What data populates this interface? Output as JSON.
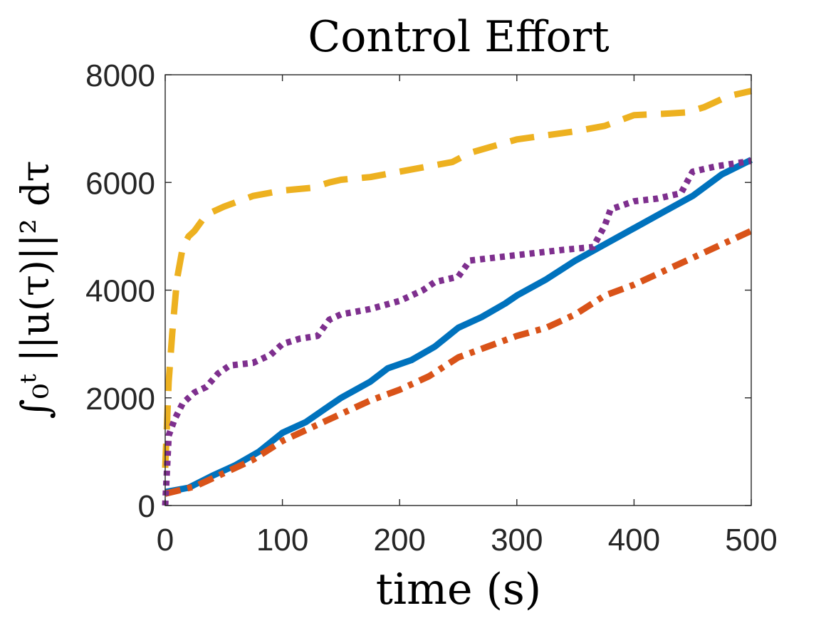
{
  "chart_data": {
    "type": "line",
    "title": "Control Effort",
    "xlabel": "time (s)",
    "ylabel": "∫₀ᵗ ||u(τ)||² dτ",
    "xlim": [
      0,
      500
    ],
    "ylim": [
      0,
      8000
    ],
    "xticks": [
      0,
      100,
      200,
      300,
      400,
      500
    ],
    "yticks": [
      0,
      2000,
      4000,
      6000,
      8000
    ],
    "xtick_labels": [
      "0",
      "100",
      "200",
      "300",
      "400",
      "500"
    ],
    "ytick_labels": [
      "0",
      "2000",
      "4000",
      "6000",
      "8000"
    ],
    "grid": false,
    "series": [
      {
        "color": "#EDB120",
        "style": "dashed",
        "x": [
          0,
          3,
          6,
          10,
          15,
          20,
          25,
          35,
          50,
          75,
          100,
          125,
          140,
          150,
          175,
          200,
          225,
          245,
          260,
          300,
          350,
          375,
          400,
          430,
          445,
          460,
          480,
          500
        ],
        "y": [
          700,
          2300,
          3200,
          4200,
          4800,
          5000,
          5100,
          5400,
          5550,
          5750,
          5850,
          5900,
          6000,
          6050,
          6100,
          6200,
          6300,
          6380,
          6550,
          6800,
          6950,
          7050,
          7250,
          7280,
          7300,
          7400,
          7600,
          7700
        ]
      },
      {
        "color": "#0072BD",
        "style": "solid",
        "x": [
          0,
          20,
          40,
          60,
          80,
          100,
          120,
          140,
          150,
          175,
          190,
          210,
          230,
          250,
          270,
          290,
          300,
          325,
          350,
          375,
          400,
          425,
          450,
          475,
          500
        ],
        "y": [
          250,
          330,
          550,
          750,
          1000,
          1350,
          1550,
          1850,
          2000,
          2300,
          2550,
          2700,
          2950,
          3300,
          3500,
          3750,
          3900,
          4200,
          4550,
          4850,
          5150,
          5450,
          5750,
          6150,
          6420
        ]
      },
      {
        "color": "#D95319",
        "style": "dashdot",
        "x": [
          0,
          25,
          50,
          75,
          100,
          125,
          150,
          175,
          200,
          225,
          250,
          275,
          300,
          325,
          350,
          375,
          400,
          425,
          450,
          475,
          500
        ],
        "y": [
          220,
          350,
          600,
          850,
          1200,
          1450,
          1700,
          1950,
          2150,
          2400,
          2750,
          2950,
          3150,
          3300,
          3550,
          3900,
          4100,
          4350,
          4600,
          4850,
          5100
        ]
      },
      {
        "color": "#7E2F8E",
        "style": "dotted",
        "x": [
          0,
          3,
          8,
          15,
          25,
          35,
          45,
          55,
          75,
          90,
          100,
          115,
          130,
          140,
          150,
          175,
          200,
          220,
          230,
          250,
          260,
          300,
          340,
          365,
          375,
          380,
          400,
          420,
          440,
          450,
          470,
          500
        ],
        "y": [
          0,
          1300,
          1600,
          1900,
          2100,
          2200,
          2450,
          2600,
          2650,
          2800,
          3000,
          3100,
          3150,
          3450,
          3550,
          3650,
          3800,
          4000,
          4150,
          4250,
          4550,
          4650,
          4750,
          4800,
          5200,
          5500,
          5650,
          5700,
          5800,
          6200,
          6300,
          6400
        ]
      }
    ]
  }
}
